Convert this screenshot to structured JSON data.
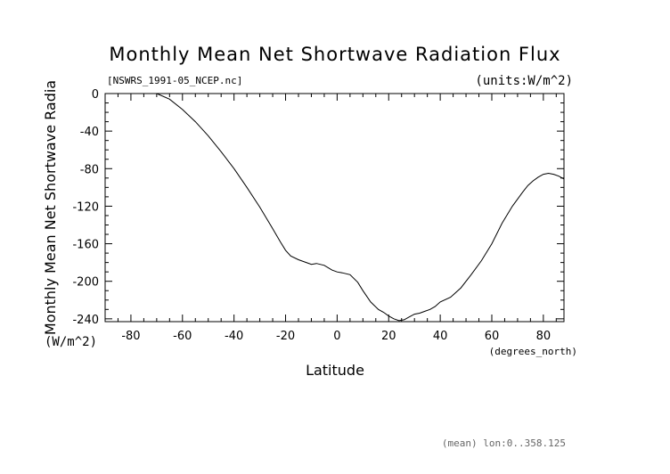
{
  "chart_data": {
    "type": "line",
    "title": "Monthly Mean Net Shortwave Radiation Flux",
    "subtitle": "[NSWRS_1991-05_NCEP.nc]",
    "units_note": "(units:W/m^2)",
    "xlabel": "Latitude",
    "x_units": "(degrees_north)",
    "ylabel": "Monthly Mean Net Shortwave Radia",
    "y_units": "(W/m^2)",
    "footer": "(mean) lon:0..358.125",
    "xlim": [
      -90,
      88
    ],
    "ylim": [
      -243,
      0
    ],
    "xticks": [
      -80,
      -60,
      -40,
      -20,
      0,
      20,
      40,
      60,
      80
    ],
    "yticks": [
      0,
      -40,
      -80,
      -120,
      -160,
      -200,
      -240
    ],
    "x_tick_labels": [
      "-80",
      "-60",
      "-40",
      "-20",
      "0",
      "20",
      "40",
      "60",
      "80"
    ],
    "y_tick_labels": [
      "0",
      "-40",
      "-80",
      "-120",
      "-160",
      "-200",
      "-240"
    ],
    "grid": false,
    "series": [
      {
        "x": [
          -70,
          -65,
          -60,
          -55,
          -50,
          -45,
          -40,
          -35,
          -30,
          -25,
          -22,
          -20,
          -18,
          -15,
          -12,
          -10,
          -8,
          -5,
          -2,
          0,
          2,
          5,
          8,
          10,
          13,
          16,
          18,
          20,
          22,
          24,
          26,
          28,
          30,
          32,
          34,
          36,
          38,
          40,
          44,
          48,
          52,
          56,
          60,
          64,
          68,
          72,
          74,
          76,
          78,
          80,
          82,
          84,
          86,
          88
        ],
        "y": [
          0,
          -6,
          -17,
          -30,
          -45,
          -62,
          -80,
          -100,
          -121,
          -144,
          -158,
          -167,
          -173,
          -177,
          -180,
          -182,
          -181,
          -183,
          -188,
          -190,
          -191,
          -193,
          -201,
          -210,
          -222,
          -230,
          -233,
          -237,
          -240,
          -242,
          -241,
          -238,
          -235,
          -234,
          -232,
          -230,
          -227,
          -222,
          -217,
          -207,
          -193,
          -178,
          -160,
          -138,
          -120,
          -105,
          -98,
          -93,
          -89,
          -86,
          -85,
          -86,
          -88,
          -91
        ]
      }
    ]
  }
}
